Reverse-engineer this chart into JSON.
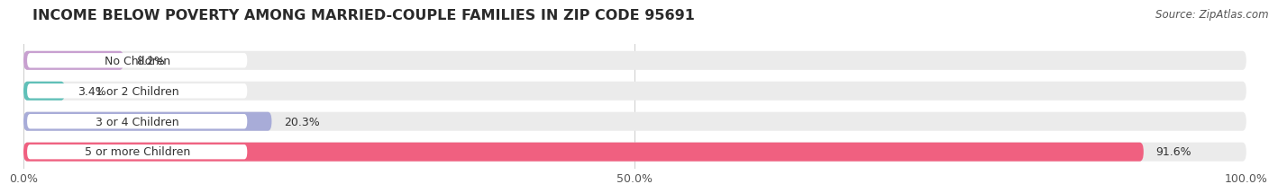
{
  "title": "INCOME BELOW POVERTY AMONG MARRIED-COUPLE FAMILIES IN ZIP CODE 95691",
  "source": "Source: ZipAtlas.com",
  "categories": [
    "No Children",
    "1 or 2 Children",
    "3 or 4 Children",
    "5 or more Children"
  ],
  "values": [
    8.2,
    3.4,
    20.3,
    91.6
  ],
  "bar_colors": [
    "#c8a0d0",
    "#60c0b8",
    "#a8acd8",
    "#f06080"
  ],
  "bar_bg_color": "#ebebeb",
  "xlim": [
    0,
    100
  ],
  "xtick_labels": [
    "0.0%",
    "50.0%",
    "100.0%"
  ],
  "title_fontsize": 11.5,
  "label_fontsize": 9,
  "value_fontsize": 9,
  "source_fontsize": 8.5,
  "background_color": "#ffffff",
  "label_pill_color": "#ffffff",
  "label_text_color": "#333333",
  "value_text_color": "#333333",
  "grid_color": "#cccccc",
  "bar_height": 0.62,
  "bar_gap": 0.38
}
